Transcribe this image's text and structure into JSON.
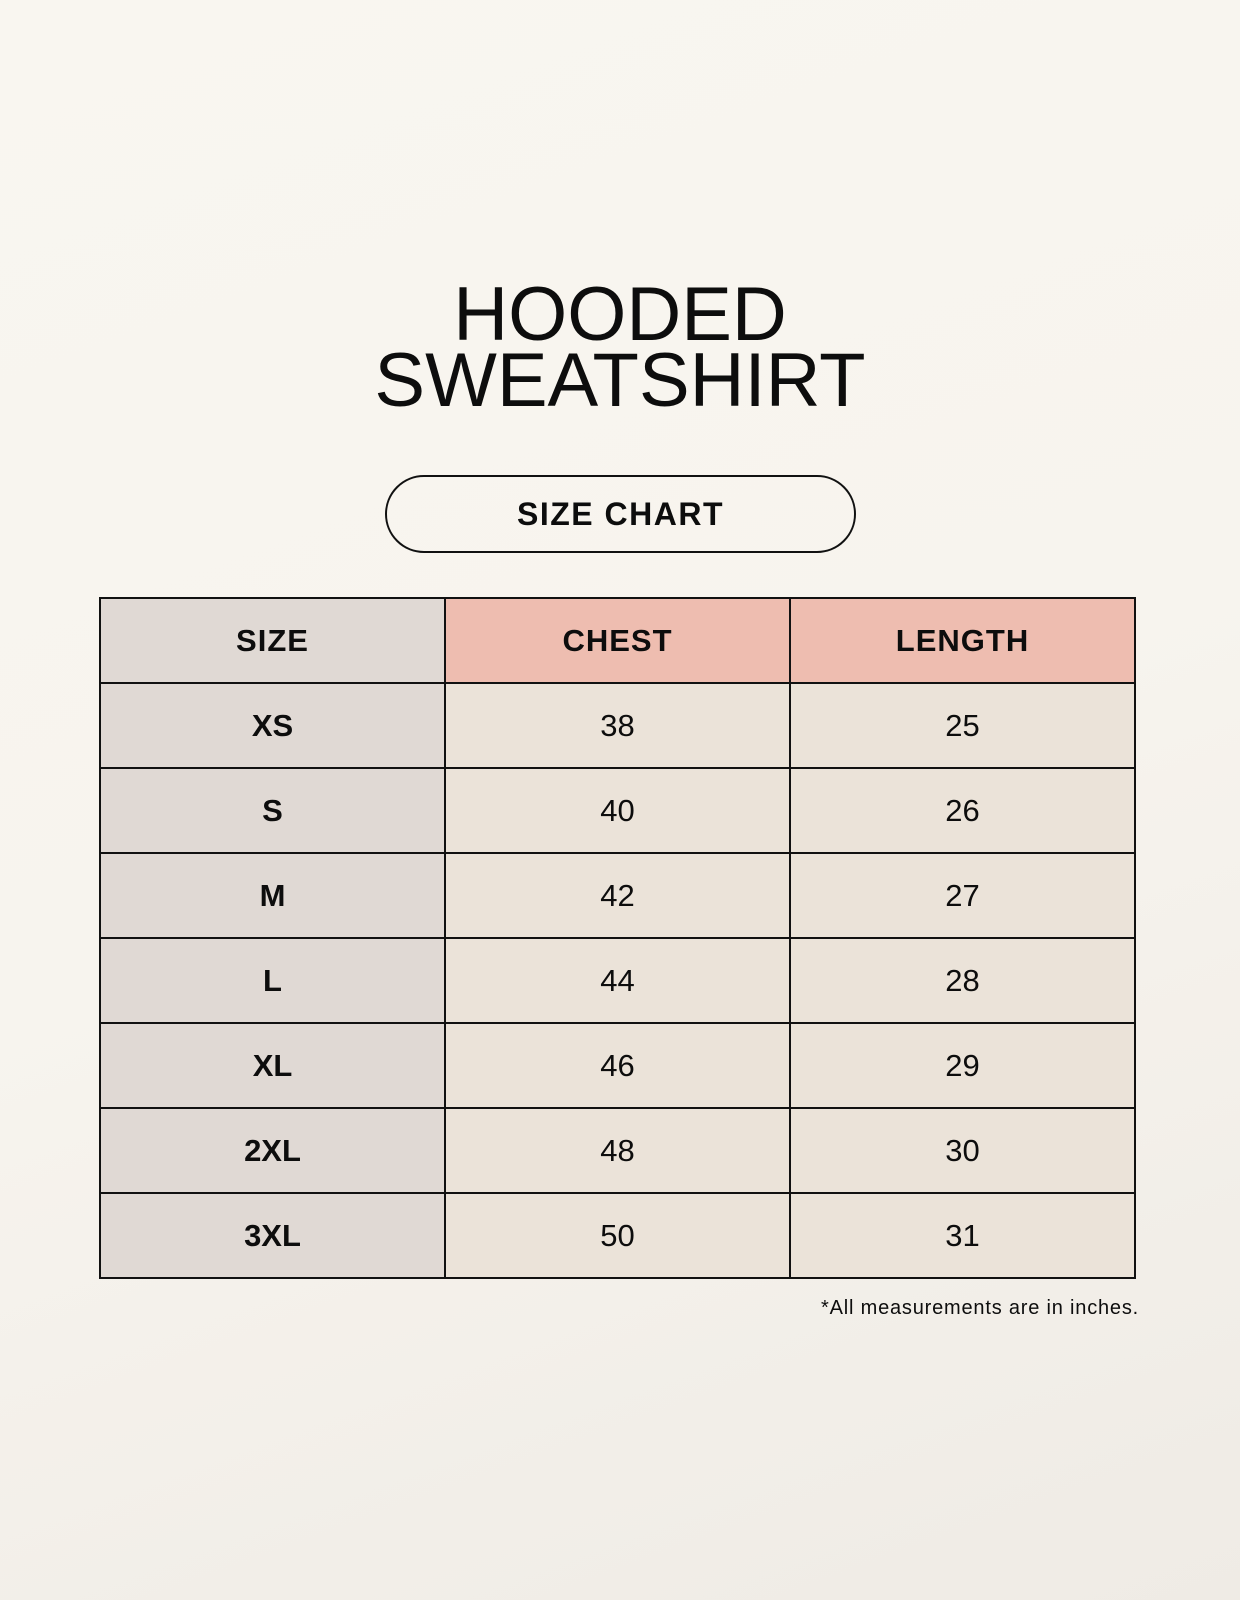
{
  "title_line1": "HOODED",
  "title_line2": "SWEATSHIRT",
  "badge": "SIZE CHART",
  "table": {
    "headers": [
      "SIZE",
      "CHEST",
      "LENGTH"
    ],
    "rows": [
      [
        "XS",
        "38",
        "25"
      ],
      [
        "S",
        "40",
        "26"
      ],
      [
        "M",
        "42",
        "27"
      ],
      [
        "L",
        "44",
        "28"
      ],
      [
        "XL",
        "46",
        "29"
      ],
      [
        "2XL",
        "48",
        "30"
      ],
      [
        "3XL",
        "50",
        "31"
      ]
    ]
  },
  "note": "*All measurements are in inches.",
  "colors": {
    "size_column": "#e0d9d4",
    "header_accent": "#eebdb0",
    "value_cells": "#ebe3d9",
    "background": "#f8f5ef"
  }
}
